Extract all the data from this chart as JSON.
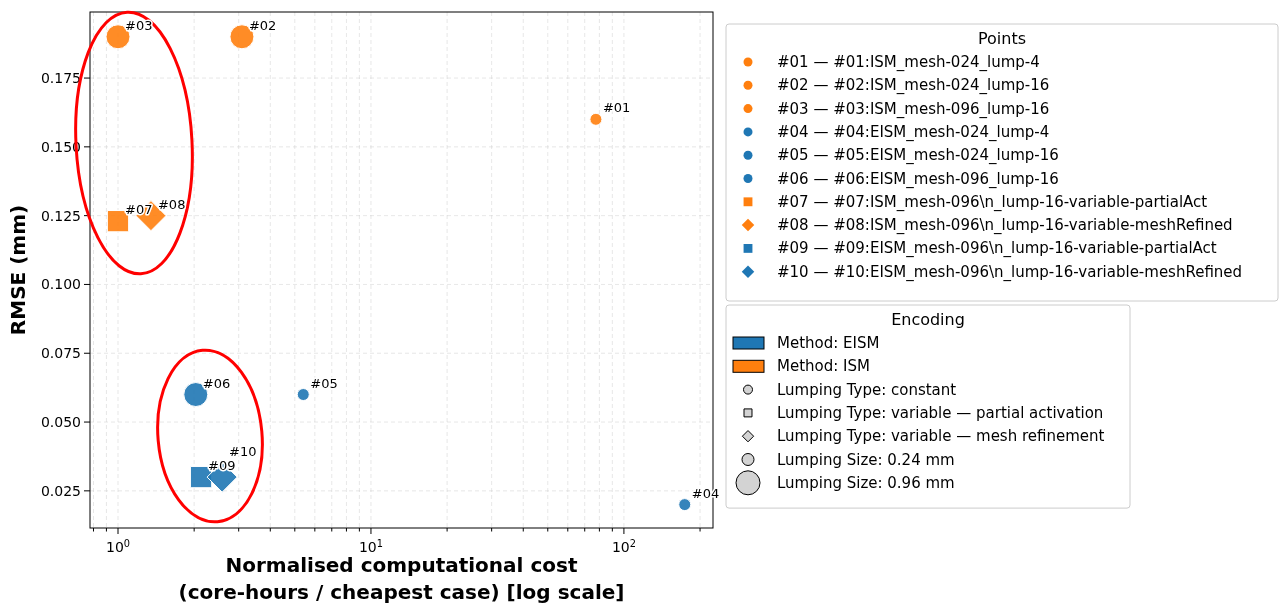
{
  "chart_data": {
    "type": "bubble",
    "xlabel": "Normalised computational cost\n(core-hours / cheapest case) [log scale]",
    "ylabel": "RMSE (mm)",
    "legend_title": "Points",
    "legend": "right",
    "log": "x",
    "grid": true,
    "xlim": [
      0.775,
      225
    ],
    "ylim": [
      0.0115,
      0.199
    ],
    "xticks": [
      {
        "value": 0.8,
        "label": null
      },
      {
        "value": 0.9,
        "label": null
      },
      {
        "value": 1,
        "label": "10$^{0}$"
      },
      {
        "value": 2,
        "label": null
      },
      {
        "value": 3,
        "label": null
      },
      {
        "value": 4,
        "label": null
      },
      {
        "value": 5,
        "label": null
      },
      {
        "value": 6,
        "label": null
      },
      {
        "value": 7,
        "label": null
      },
      {
        "value": 8,
        "label": null
      },
      {
        "value": 9,
        "label": null
      },
      {
        "value": 10,
        "label": "10$^{1}$"
      },
      {
        "value": 20,
        "label": null
      },
      {
        "value": 30,
        "label": null
      },
      {
        "value": 40,
        "label": null
      },
      {
        "value": 50,
        "label": null
      },
      {
        "value": 60,
        "label": null
      },
      {
        "value": 70,
        "label": null
      },
      {
        "value": 80,
        "label": null
      },
      {
        "value": 90,
        "label": null
      },
      {
        "value": 100,
        "label": "10$^{2}$"
      },
      {
        "value": 200,
        "label": null
      }
    ],
    "yticks": [
      {
        "value": 0.025,
        "label": "0.025"
      },
      {
        "value": 0.05,
        "label": "0.050"
      },
      {
        "value": 0.075,
        "label": "0.075"
      },
      {
        "value": 0.1,
        "label": "0.100"
      },
      {
        "value": 0.125,
        "label": "0.125"
      },
      {
        "value": 0.15,
        "label": "0.150"
      },
      {
        "value": 0.175,
        "label": "0.175"
      }
    ],
    "size_legend": [
      {
        "value": 0.24,
        "label": "Lumping Size: 0.24 mm"
      },
      {
        "value": 0.96,
        "label": "Lumping Size: 0.96 mm"
      }
    ],
    "series": [
      {
        "name": "#01 — #01:ISM_mesh-024_lump-4",
        "color": "#ff7f0e",
        "marker": "circle",
        "x": [
          77.5
        ],
        "values": [
          0.16
        ],
        "sizes": [
          0.24
        ]
      },
      {
        "name": "#02 — #02:ISM_mesh-024_lump-16",
        "color": "#ff7f0e",
        "marker": "circle",
        "x": [
          3.09
        ],
        "values": [
          0.19
        ],
        "sizes": [
          0.96
        ]
      },
      {
        "name": "#03 — #03:ISM_mesh-096_lump-16",
        "color": "#ff7f0e",
        "marker": "circle",
        "x": [
          1.0
        ],
        "values": [
          0.19
        ],
        "sizes": [
          0.96
        ]
      },
      {
        "name": "#04 — #04:EISM_mesh-024_lump-4",
        "color": "#1f77b4",
        "marker": "circle",
        "x": [
          174
        ],
        "values": [
          0.02
        ],
        "sizes": [
          0.24
        ]
      },
      {
        "name": "#05 — #05:EISM_mesh-024_lump-16",
        "color": "#1f77b4",
        "marker": "circle",
        "x": [
          5.4
        ],
        "values": [
          0.06
        ],
        "sizes": [
          0.24
        ]
      },
      {
        "name": "#06 — #06:EISM_mesh-096_lump-16",
        "color": "#1f77b4",
        "marker": "circle",
        "x": [
          2.03
        ],
        "values": [
          0.06
        ],
        "sizes": [
          0.96
        ]
      },
      {
        "name": "#07 — #07:ISM_mesh-096\\n_lump-16-variable-partialAct",
        "color": "#ff7f0e",
        "marker": "square",
        "x": [
          1.0
        ],
        "values": [
          0.123
        ],
        "sizes": [
          0.96
        ]
      },
      {
        "name": "#08 — #08:ISM_mesh-096\\n_lump-16-variable-meshRefined",
        "color": "#ff7f0e",
        "marker": "diamond",
        "x": [
          1.35
        ],
        "values": [
          0.125
        ],
        "sizes": [
          0.96
        ]
      },
      {
        "name": "#09 — #09:EISM_mesh-096\\n_lump-16-variable-partialAct",
        "color": "#1f77b4",
        "marker": "square",
        "x": [
          2.13
        ],
        "values": [
          0.03
        ],
        "sizes": [
          0.96
        ]
      },
      {
        "name": "#10 — #10:EISM_mesh-096\\n_lump-16-variable-meshRefined",
        "color": "#1f77b4",
        "marker": "diamond",
        "x": [
          2.58
        ],
        "values": [
          0.03
        ],
        "sizes": [
          0.96
        ]
      }
    ],
    "annotations": [
      {
        "text": "#01",
        "x": 77.5,
        "y": 0.16
      },
      {
        "text": "#02",
        "x": 3.09,
        "y": 0.19
      },
      {
        "text": "#03",
        "x": 1.0,
        "y": 0.19
      },
      {
        "text": "#04",
        "x": 174,
        "y": 0.02
      },
      {
        "text": "#05",
        "x": 5.4,
        "y": 0.06
      },
      {
        "text": "#06",
        "x": 2.03,
        "y": 0.06
      },
      {
        "text": "#07",
        "x": 1.0,
        "y": 0.123
      },
      {
        "text": "#08",
        "x": 1.35,
        "y": 0.125
      },
      {
        "text": "#09",
        "x": 2.13,
        "y": 0.03
      },
      {
        "text": "#10",
        "x": 2.58,
        "y": 0.03
      },
      "Encoding",
      "Method: EISM",
      "Method: ISM",
      "Lumping Type: constant",
      "Lumping Type: variable — partial activation",
      "Lumping Type: variable — mesh refinement"
    ]
  }
}
